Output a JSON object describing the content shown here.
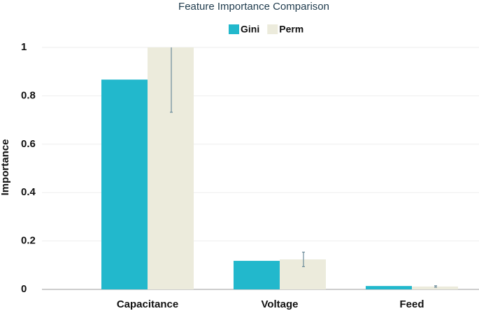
{
  "chart_data": {
    "type": "bar",
    "title": "Feature Importance Comparison",
    "y_label": "Importance",
    "categories": [
      "Capacitance",
      "Voltage",
      "Feed"
    ],
    "series": [
      {
        "name": "Gini",
        "color": "#22b8cc",
        "values": [
          0.867,
          0.118,
          0.014
        ]
      },
      {
        "name": "Perm",
        "color": "#ecebdc",
        "values": [
          1.0,
          0.124,
          0.012
        ],
        "errors": [
          0.268,
          0.03,
          0.003
        ]
      }
    ],
    "ylim": [
      0,
      1
    ],
    "yticks": [
      0,
      0.2,
      0.4,
      0.6,
      0.8,
      1
    ],
    "grid": true,
    "legend": "top"
  }
}
